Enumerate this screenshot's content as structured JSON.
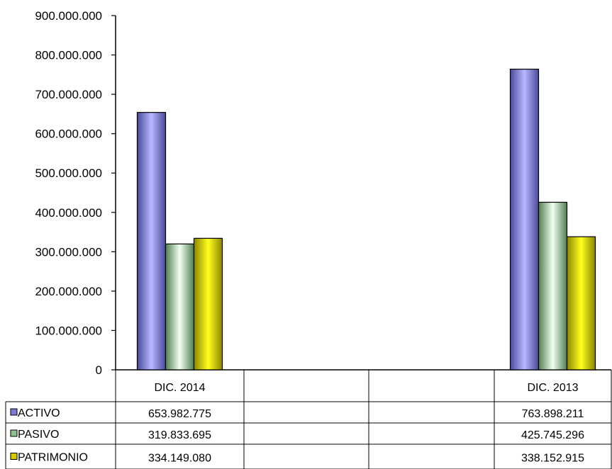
{
  "chart_data": {
    "type": "bar",
    "categories": [
      "DIC. 2014",
      "",
      "",
      "DIC. 2013"
    ],
    "series": [
      {
        "name": "ACTIVO",
        "values": [
          653982775,
          null,
          null,
          763898211
        ],
        "labels": [
          "653.982.775",
          "",
          "",
          "763.898.211"
        ],
        "color": "#7b7bd8"
      },
      {
        "name": "PASIVO",
        "values": [
          319833695,
          null,
          null,
          425745296
        ],
        "labels": [
          "319.833.695",
          "",
          "",
          "425.745.296"
        ],
        "color": "#8fbf8f"
      },
      {
        "name": "PATRIMONIO",
        "values": [
          334149080,
          null,
          null,
          338152915
        ],
        "labels": [
          "334.149.080",
          "",
          "",
          "338.152.915"
        ],
        "color": "#d4cc00"
      }
    ],
    "yticks": [
      "0",
      "100.000.000",
      "200.000.000",
      "300.000.000",
      "400.000.000",
      "500.000.000",
      "600.000.000",
      "700.000.000",
      "800.000.000",
      "900.000.000"
    ],
    "ylim": [
      0,
      900000000
    ],
    "legend": "data-table",
    "grid": false
  }
}
